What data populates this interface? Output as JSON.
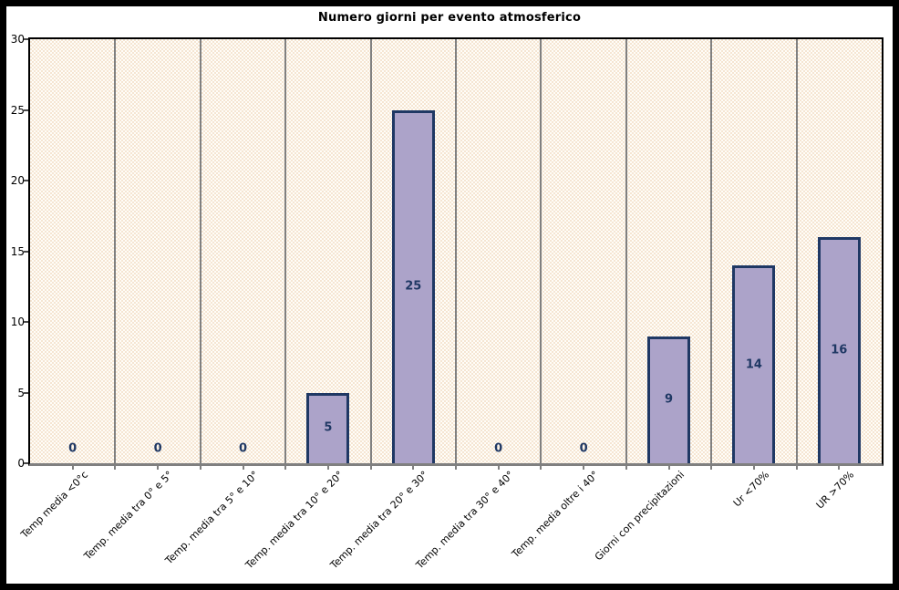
{
  "chart": {
    "title": "Numero giorni per evento atmosferico"
  },
  "chart_data": {
    "type": "bar",
    "title": "Numero giorni per evento atmosferico",
    "categories": [
      "Temp media <0°c",
      "Temp. media tra 0° e 5°",
      "Temp. media tra 5° e 10°",
      "Temp. media tra 10° e 20°",
      "Temp. media tra 20° e 30°",
      "Temp. media tra 30° e 40°",
      "Temp. media oltre i 40°",
      "Giorni con precipitazioni",
      "Ur <70%",
      "UR >70%"
    ],
    "values": [
      0,
      0,
      0,
      5,
      25,
      0,
      0,
      9,
      14,
      16
    ],
    "xlabel": "",
    "ylabel": "",
    "ylim": [
      0,
      30
    ],
    "yticks": [
      0,
      5,
      10,
      15,
      20,
      25,
      30
    ],
    "value_labels_shown": true,
    "legend": "none",
    "gridlines": "vertical lines at category boundaries",
    "style": {
      "bar_fill": "#ACA3C9",
      "bar_border": "#1F3864",
      "value_label_color": "#1F3864",
      "grid_color": "#808080",
      "axis_line_color": "#808080",
      "plot_border_color": "#000000",
      "outer_border_color": "#000000",
      "text_color": "#000000",
      "plot_bg_base": "#FFFDF8",
      "plot_bg_dot": "#F5E5D2",
      "figure_bg": "#FFFFFF"
    }
  }
}
